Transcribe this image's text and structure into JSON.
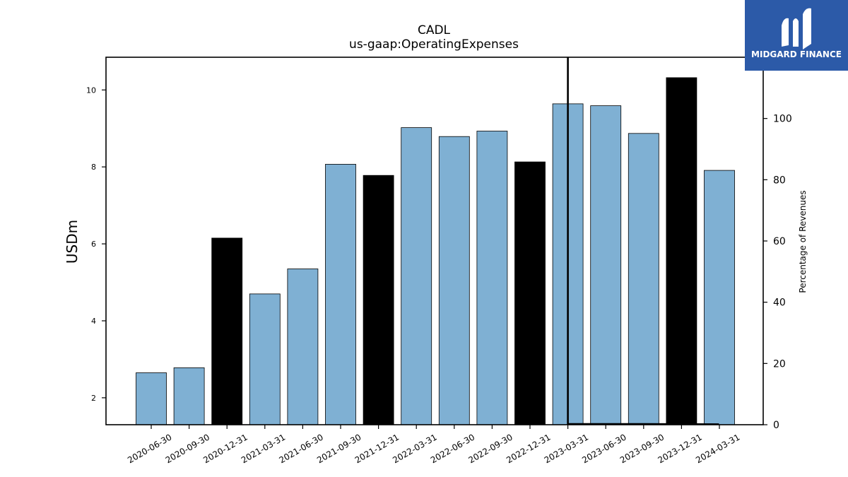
{
  "chart_data": {
    "type": "bar",
    "title": "CADL",
    "subtitle": "us-gaap:OperatingExpenses",
    "ylabel": "USDm",
    "y2label": "Percentage of Revenues",
    "categories": [
      "2020-06-30",
      "2020-09-30",
      "2020-12-31",
      "2021-03-31",
      "2021-06-30",
      "2021-09-30",
      "2021-12-31",
      "2022-03-31",
      "2022-06-30",
      "2022-09-30",
      "2022-12-31",
      "2023-03-31",
      "2023-06-30",
      "2023-09-30",
      "2023-12-31",
      "2024-03-31"
    ],
    "values": [
      2.65,
      2.78,
      6.15,
      4.7,
      5.35,
      8.07,
      7.78,
      9.02,
      8.79,
      8.93,
      8.13,
      9.64,
      9.59,
      8.87,
      10.32,
      7.91
    ],
    "highlight": [
      false,
      false,
      true,
      false,
      false,
      false,
      true,
      false,
      false,
      false,
      true,
      false,
      false,
      false,
      true,
      false
    ],
    "ylim": [
      1.3,
      10.85
    ],
    "yticks": [
      2,
      4,
      6,
      8,
      10
    ],
    "y2lim": [
      0,
      120
    ],
    "y2ticks": [
      0,
      20,
      40,
      60,
      80,
      100
    ],
    "percentage_series": {
      "start_category": "2023-03-31",
      "values": [
        0.3,
        0.3,
        0.3,
        0.2
      ]
    },
    "bar_color": "#7fb0d3",
    "highlight_color": "#000000",
    "grid": false
  },
  "logo": {
    "text": "MIDGARD FINANCE",
    "bg_color": "#2c5aa8"
  }
}
